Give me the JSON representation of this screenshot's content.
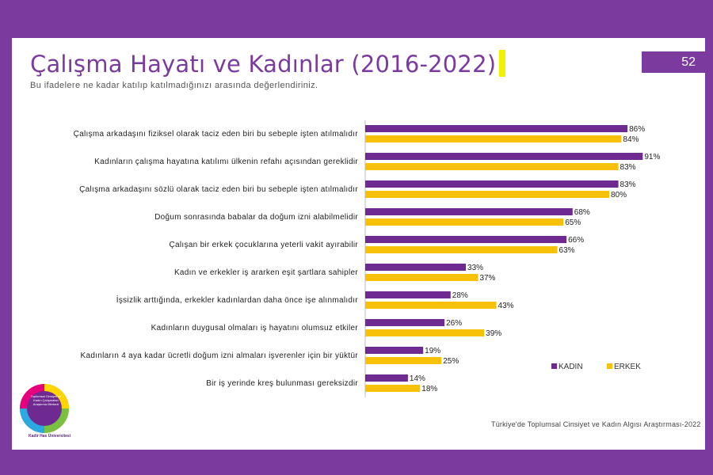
{
  "page": {
    "title": "Çalışma Hayatı ve Kadınlar (2016-2022)",
    "subtitle": "Bu ifadelere ne kadar katılıp katılmadığınızı arasında değerlendiriniz.",
    "page_number": "52",
    "source": "Türkiye'de Toplumsal Cinsiyet ve Kadın Algısı Araştırması-2022",
    "logo_text": "Toplumsal Cinsiyet ve Kadın Çalışmaları Araştırma Merkezi",
    "logo_bottom": "Kadir Has Üniversitesi"
  },
  "colors": {
    "brand": "#7B3A9E",
    "kadin": "#6F2A91",
    "erkek": "#F7C10A",
    "accent": "#F2F200"
  },
  "chart_data": {
    "type": "bar",
    "orientation": "horizontal",
    "categories": [
      "Çalışma arkadaşını fiziksel olarak taciz eden biri bu sebeple işten atılmalıdır",
      "Kadınların çalışma hayatına katılımı ülkenin refahı açısından gereklidir",
      "Çalışma arkadaşını sözlü olarak taciz eden biri bu sebeple işten atılmalıdır",
      "Doğum sonrasında babalar da doğum izni alabilmelidir",
      "Çalışan bir erkek çocuklarına yeterli vakit ayırabilir",
      "Kadın ve erkekler iş ararken eşit şartlara sahipler",
      "İşsizlik arttığında, erkekler kadınlardan daha önce işe alınmalıdır",
      "Kadınların duygusal olmaları iş hayatını olumsuz etkiler",
      "Kadınların 4 aya kadar ücretli doğum izni almaları işverenler için bir yüktür",
      "Bir iş yerinde kreş bulunması gereksizdir"
    ],
    "series": [
      {
        "name": "KADIN",
        "values": [
          86,
          91,
          83,
          68,
          66,
          33,
          28,
          26,
          19,
          14
        ]
      },
      {
        "name": "ERKEK",
        "values": [
          84,
          83,
          80,
          65,
          63,
          37,
          43,
          39,
          25,
          18
        ]
      }
    ],
    "value_suffix": "%",
    "legend_position": "right",
    "xlim": [
      0,
      100
    ],
    "grid": false
  }
}
